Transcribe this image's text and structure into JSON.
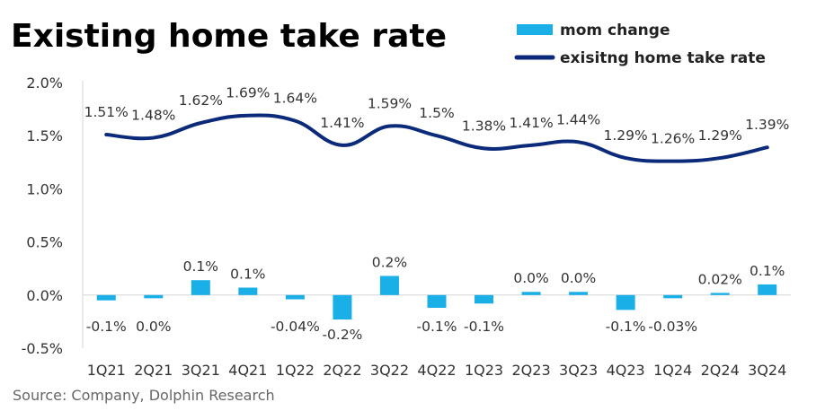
{
  "chart_data": {
    "type": "bar+line",
    "title": "Existing home take rate",
    "categories": [
      "1Q21",
      "2Q21",
      "3Q21",
      "4Q21",
      "1Q22",
      "2Q22",
      "3Q22",
      "4Q22",
      "1Q23",
      "2Q23",
      "3Q23",
      "4Q23",
      "1Q24",
      "2Q24",
      "3Q24"
    ],
    "series": [
      {
        "name": "mom change",
        "type": "bar",
        "color": "#1AAFE6",
        "values": [
          -0.05,
          -0.03,
          0.14,
          0.07,
          -0.04,
          -0.23,
          0.18,
          -0.12,
          -0.08,
          0.03,
          0.03,
          -0.14,
          -0.03,
          0.02,
          0.1
        ],
        "labels": [
          "-0.1%",
          "0.0%",
          "0.1%",
          "0.1%",
          "-0.04%",
          "-0.2%",
          "0.2%",
          "-0.1%",
          "-0.1%",
          "0.0%",
          "0.0%",
          "-0.1%",
          "-0.03%",
          "0.02%",
          "0.1%"
        ]
      },
      {
        "name": "exisitng home take rate",
        "type": "line",
        "color": "#0B2A7A",
        "values": [
          1.51,
          1.48,
          1.62,
          1.69,
          1.64,
          1.41,
          1.59,
          1.5,
          1.38,
          1.41,
          1.44,
          1.29,
          1.26,
          1.29,
          1.39
        ],
        "labels": [
          "1.51%",
          "1.48%",
          "1.62%",
          "1.69%",
          "1.64%",
          "1.41%",
          "1.59%",
          "1.5%",
          "1.38%",
          "1.41%",
          "1.44%",
          "1.29%",
          "1.26%",
          "1.29%",
          "1.39%"
        ]
      }
    ],
    "ylim": [
      -0.5,
      2.0
    ],
    "yticks": [
      "2.0%",
      "1.5%",
      "1.0%",
      "0.5%",
      "0.0%",
      "-0.5%"
    ],
    "ytick_values": [
      2.0,
      1.5,
      1.0,
      0.5,
      0.0,
      -0.5
    ],
    "xlabel": "",
    "ylabel": "",
    "legend_position": "top-right",
    "grid": false,
    "source": "Source: Company, Dolphin Research"
  }
}
